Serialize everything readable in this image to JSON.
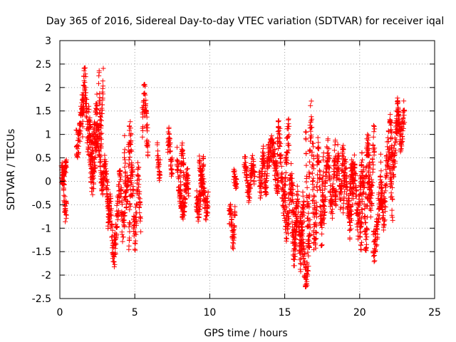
{
  "chart_data": {
    "type": "scatter",
    "title": "Day 365 of 2016, Sidereal Day-to-day VTEC variation (SDTVAR) for receiver iqal",
    "xlabel": "GPS time / hours",
    "ylabel": "SDTVAR / TECUs",
    "xlim": [
      0,
      25
    ],
    "ylim": [
      -2.5,
      3
    ],
    "xticks": [
      0,
      5,
      10,
      15,
      20,
      25
    ],
    "xtick_labels": [
      "0",
      "5",
      "10",
      "15",
      "20",
      "25"
    ],
    "yticks": [
      -2.5,
      -2,
      -1.5,
      -1,
      -0.5,
      0,
      0.5,
      1,
      1.5,
      2,
      2.5,
      3
    ],
    "ytick_labels": [
      "-2.5",
      "-2",
      "-1.5",
      "-1",
      "-0.5",
      "0",
      "0.5",
      "1",
      "1.5",
      "2",
      "2.5",
      "3"
    ],
    "grid": true,
    "marker": "+",
    "color": "#ff0000",
    "segments": [
      {
        "t0": 0.0,
        "t1": 0.45,
        "yc": -0.2,
        "amp": 0.45,
        "noise": 0.25
      },
      {
        "t0": 0.15,
        "t1": 0.45,
        "yc": 0.25,
        "amp": 0.2,
        "noise": 0.15
      },
      {
        "t0": 1.1,
        "t1": 1.6,
        "yc": 1.2,
        "amp": 0.4,
        "noise": 0.3
      },
      {
        "t0": 1.5,
        "t1": 2.0,
        "yc": 1.5,
        "amp": 0.6,
        "noise": 0.4
      },
      {
        "t0": 1.9,
        "t1": 2.5,
        "yc": 1.2,
        "amp": 0.5,
        "noise": 0.35
      },
      {
        "t0": 2.0,
        "t1": 2.9,
        "yc": 0.5,
        "amp": 0.5,
        "noise": 0.3
      },
      {
        "t0": 2.6,
        "t1": 2.9,
        "yc": 1.7,
        "amp": 0.7,
        "noise": 0.35
      },
      {
        "t0": 2.9,
        "t1": 3.3,
        "yc": -0.2,
        "amp": 0.5,
        "noise": 0.3
      },
      {
        "t0": 3.2,
        "t1": 3.9,
        "yc": -1.0,
        "amp": 0.5,
        "noise": 0.35
      },
      {
        "t0": 3.9,
        "t1": 4.4,
        "yc": -0.5,
        "amp": 0.5,
        "noise": 0.35
      },
      {
        "t0": 4.3,
        "t1": 4.8,
        "yc": 0.3,
        "amp": 0.6,
        "noise": 0.4
      },
      {
        "t0": 4.6,
        "t1": 5.4,
        "yc": -0.5,
        "amp": 0.6,
        "noise": 0.4
      },
      {
        "t0": 5.5,
        "t1": 5.9,
        "yc": 1.0,
        "amp": 0.7,
        "noise": 0.4
      },
      {
        "t0": 6.5,
        "t1": 6.7,
        "yc": 0.5,
        "amp": 0.3,
        "noise": 0.2
      },
      {
        "t0": 7.2,
        "t1": 7.5,
        "yc": 0.6,
        "amp": 0.35,
        "noise": 0.2
      },
      {
        "t0": 7.8,
        "t1": 8.3,
        "yc": 0.2,
        "amp": 0.4,
        "noise": 0.25
      },
      {
        "t0": 8.0,
        "t1": 8.6,
        "yc": -0.3,
        "amp": 0.35,
        "noise": 0.25
      },
      {
        "t0": 9.3,
        "t1": 9.6,
        "yc": 0.3,
        "amp": 0.2,
        "noise": 0.15
      },
      {
        "t0": 9.1,
        "t1": 9.9,
        "yc": -0.3,
        "amp": 0.3,
        "noise": 0.25
      },
      {
        "t0": 11.3,
        "t1": 11.7,
        "yc": -0.9,
        "amp": 0.35,
        "noise": 0.2
      },
      {
        "t0": 11.6,
        "t1": 11.8,
        "yc": 0.0,
        "amp": 0.2,
        "noise": 0.15
      },
      {
        "t0": 12.3,
        "t1": 13.0,
        "yc": 0.05,
        "amp": 0.3,
        "noise": 0.2
      },
      {
        "t0": 13.3,
        "t1": 14.0,
        "yc": 0.2,
        "amp": 0.35,
        "noise": 0.25
      },
      {
        "t0": 14.0,
        "t1": 14.6,
        "yc": 0.3,
        "amp": 0.4,
        "noise": 0.3
      },
      {
        "t0": 14.5,
        "t1": 15.3,
        "yc": 0.3,
        "amp": 0.7,
        "noise": 0.35
      },
      {
        "t0": 15.0,
        "t1": 15.8,
        "yc": -0.5,
        "amp": 0.5,
        "noise": 0.4
      },
      {
        "t0": 15.5,
        "t1": 16.3,
        "yc": -1.0,
        "amp": 0.55,
        "noise": 0.4
      },
      {
        "t0": 16.0,
        "t1": 16.7,
        "yc": -1.5,
        "amp": 0.5,
        "noise": 0.35
      },
      {
        "t0": 16.4,
        "t1": 17.0,
        "yc": 0.2,
        "amp": 1.2,
        "noise": 0.5
      },
      {
        "t0": 16.9,
        "t1": 17.6,
        "yc": -0.2,
        "amp": 0.9,
        "noise": 0.45
      },
      {
        "t0": 17.5,
        "t1": 18.4,
        "yc": 0.0,
        "amp": 0.6,
        "noise": 0.35
      },
      {
        "t0": 18.3,
        "t1": 19.0,
        "yc": 0.1,
        "amp": 0.45,
        "noise": 0.3
      },
      {
        "t0": 18.9,
        "t1": 19.6,
        "yc": -0.2,
        "amp": 0.4,
        "noise": 0.3
      },
      {
        "t0": 19.3,
        "t1": 20.2,
        "yc": -0.3,
        "amp": 0.6,
        "noise": 0.35
      },
      {
        "t0": 20.0,
        "t1": 20.7,
        "yc": -0.6,
        "amp": 0.7,
        "noise": 0.4
      },
      {
        "t0": 20.4,
        "t1": 21.0,
        "yc": 0.2,
        "amp": 0.7,
        "noise": 0.4
      },
      {
        "t0": 20.9,
        "t1": 21.5,
        "yc": -0.8,
        "amp": 0.6,
        "noise": 0.35
      },
      {
        "t0": 21.4,
        "t1": 22.2,
        "yc": 0.0,
        "amp": 0.7,
        "noise": 0.4
      },
      {
        "t0": 22.0,
        "t1": 22.6,
        "yc": 0.9,
        "amp": 0.5,
        "noise": 0.35
      },
      {
        "t0": 22.5,
        "t1": 23.0,
        "yc": 1.2,
        "amp": 0.35,
        "noise": 0.3
      }
    ]
  }
}
